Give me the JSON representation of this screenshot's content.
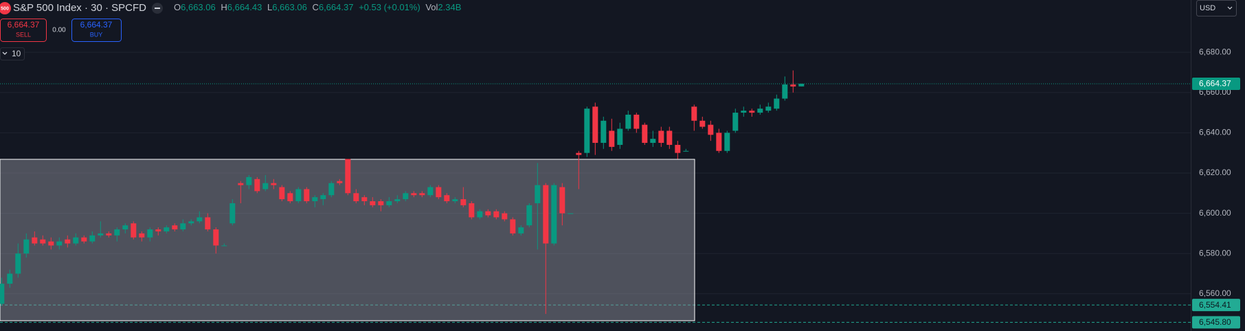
{
  "header": {
    "logo": "500",
    "title": "S&P 500 Index · 30 · SPCFD",
    "o_label": "O",
    "o": "6,663.06",
    "h_label": "H",
    "h": "6,664.43",
    "l_label": "L",
    "l": "6,663.06",
    "c_label": "C",
    "c": "6,664.37",
    "change": "+0.53 (+0.01%)",
    "vol_label": "Vol",
    "vol": "2.34B"
  },
  "trade": {
    "sell_price": "6,664.37",
    "sell_label": "SELL",
    "spread": "0.00",
    "buy_price": "6,664.37",
    "buy_label": "BUY"
  },
  "indicator_count": "10",
  "currency": "USD",
  "chart_data": {
    "type": "candlestick",
    "open": [
      6555,
      6565,
      6570,
      6580,
      6588,
      6587,
      6586,
      6584,
      6587,
      6585,
      6588,
      6586,
      6589,
      6590,
      6589,
      6592,
      6595,
      6590,
      6588,
      6592,
      6591,
      6594,
      6592,
      6595,
      6596,
      6598,
      6592,
      6584,
      6595,
      6615,
      6614,
      6617,
      6612,
      6615,
      6613,
      6610,
      6606,
      6612,
      6606,
      6607,
      6609,
      6616,
      6627,
      6610,
      6608,
      6606,
      6606,
      6604,
      6606,
      6607,
      6610,
      6610,
      6609,
      6613,
      6609,
      6606,
      6607,
      6605,
      6598,
      6601,
      6601,
      6600,
      6597,
      6590,
      6594,
      6605,
      6614,
      6585,
      6613,
      6600,
      6630,
      6630,
      6653,
      6635,
      6641,
      6634,
      6642,
      6649,
      6644,
      6635,
      6641,
      6641,
      6634,
      6631,
      6653,
      6646,
      6644,
      6640,
      6631,
      6641,
      6650,
      6651,
      6650,
      6651,
      6652,
      6657,
      6664,
      6663.06
    ],
    "high": [
      6568,
      6572,
      6585,
      6590,
      6591,
      6589,
      6588,
      6588,
      6589,
      6590,
      6589,
      6591,
      6596,
      6591,
      6593,
      6595,
      6596,
      6591,
      6593,
      6593,
      6594,
      6595,
      6597,
      6597,
      6601,
      6600,
      6593,
      6585,
      6607,
      6616,
      6619,
      6618,
      6619,
      6617,
      6614,
      6611,
      6613,
      6613,
      6609,
      6610,
      6616,
      6617,
      6627,
      6612,
      6609,
      6608,
      6607,
      6608,
      6609,
      6611,
      6611,
      6611,
      6614,
      6614,
      6610,
      6608,
      6613,
      6606,
      6602,
      6602,
      6602,
      6601,
      6598,
      6594,
      6605,
      6625,
      6615,
      6615,
      6615,
      6600,
      6631,
      6653,
      6655,
      6648,
      6647,
      6645,
      6651,
      6650,
      6645,
      6641,
      6643,
      6643,
      6636,
      6632,
      6654,
      6648,
      6646,
      6642,
      6641,
      6652,
      6653,
      6652,
      6654,
      6655,
      6659,
      6668,
      6671,
      6664.43
    ],
    "low": [
      6554,
      6563,
      6568,
      6578,
      6584,
      6584,
      6582,
      6582,
      6583,
      6584,
      6585,
      6585,
      6588,
      6588,
      6586,
      6590,
      6587,
      6586,
      6586,
      6589,
      6590,
      6591,
      6591,
      6594,
      6595,
      6591,
      6580,
      6584,
      6594,
      6605,
      6612,
      6610,
      6611,
      6612,
      6606,
      6605,
      6605,
      6605,
      6603,
      6604,
      6608,
      6614,
      6609,
      6605,
      6604,
      6603,
      6601,
      6603,
      6605,
      6606,
      6608,
      6608,
      6608,
      6607,
      6605,
      6605,
      6603,
      6597,
      6597,
      6598,
      6597,
      6596,
      6589,
      6589,
      6593,
      6582,
      6550,
      6584,
      6594,
      6600,
      6612,
      6628,
      6629,
      6632,
      6631,
      6632,
      6641,
      6640,
      6634,
      6633,
      6633,
      6632,
      6627,
      6631,
      6641,
      6642,
      6636,
      6630,
      6630,
      6640,
      6648,
      6648,
      6649,
      6650,
      6651,
      6656,
      6660,
      6663.06
    ],
    "close": [
      6565,
      6570,
      6580,
      6587,
      6585,
      6585,
      6584,
      6586,
      6585,
      6588,
      6586,
      6589,
      6590,
      6589,
      6592,
      6594,
      6588,
      6588,
      6592,
      6591,
      6593,
      6592,
      6595,
      6596,
      6598,
      6592,
      6584,
      6584,
      6605,
      6614,
      6618,
      6611,
      6615,
      6614,
      6607,
      6606,
      6612,
      6606,
      6608,
      6609,
      6615,
      6615,
      6610,
      6606,
      6606,
      6604,
      6604,
      6606,
      6607,
      6610,
      6609,
      6609,
      6613,
      6608,
      6606,
      6607,
      6604,
      6598,
      6601,
      6599,
      6598,
      6597,
      6590,
      6593,
      6604,
      6614,
      6585,
      6614,
      6600,
      6600,
      6629,
      6652,
      6635,
      6646,
      6633,
      6642,
      6649,
      6642,
      6635,
      6637,
      6635,
      6634,
      6630,
      6631,
      6646,
      6643,
      6639,
      6631,
      6640,
      6650,
      6651,
      6650,
      6652,
      6653,
      6657,
      6664,
      6663,
      6664.37
    ],
    "up_color": "#089981",
    "down_color": "#f23645",
    "ylim": [
      6541.5,
      6706
    ],
    "yticks": [
      {
        "value": 6560,
        "label": "6,560.00"
      },
      {
        "value": 6580,
        "label": "6,580.00"
      },
      {
        "value": 6600,
        "label": "6,600.00"
      },
      {
        "value": 6620,
        "label": "6,620.00"
      },
      {
        "value": 6640,
        "label": "6,640.00"
      },
      {
        "value": 6660,
        "label": "6,660.00"
      },
      {
        "value": 6680,
        "label": "6,680.00"
      }
    ],
    "grid": true,
    "last_price": {
      "value": 6664.37,
      "label": "6,664.37",
      "color": "#089981"
    },
    "price_lines": [
      {
        "value": 6554.41,
        "label": "6,554.41",
        "color": "#22ab94"
      },
      {
        "value": 6545.8,
        "label": "6,545.80",
        "color": "#22ab94"
      }
    ]
  }
}
